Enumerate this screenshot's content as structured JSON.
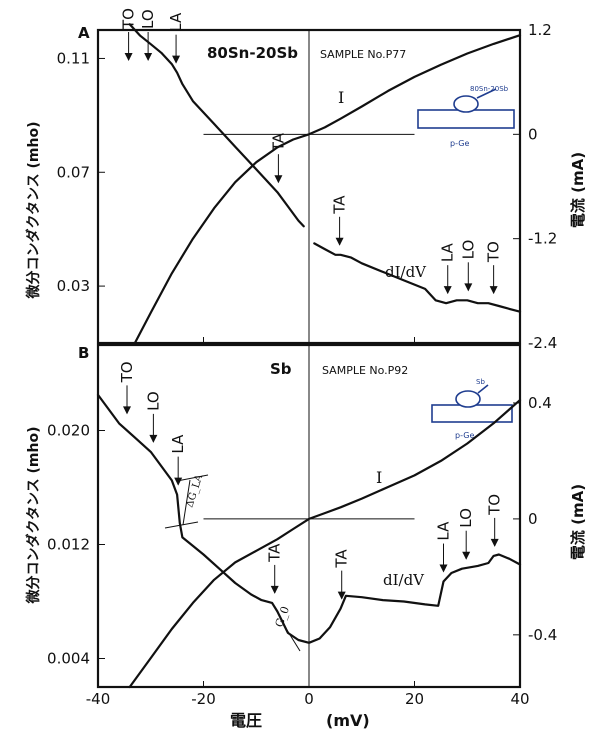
{
  "axes": {
    "xlabel": "電圧",
    "xunit": "(mV)",
    "ylabel_left": "微分コンダクタンス (mho)",
    "ylabel_right": "電流  (mA)"
  },
  "chart_data": [
    {
      "type": "line",
      "panel_label": "A",
      "material": "80Sn-20Sb",
      "sample": "SAMPLE  No.P77",
      "inset_labels": [
        "80Sn-20Sb",
        "p-Ge"
      ],
      "curve_labels": [
        "I",
        "dI/dV"
      ],
      "xlim": [
        -40,
        40
      ],
      "x_ticks": [
        -40,
        -20,
        0,
        20,
        40
      ],
      "ylim_left": [
        0.01,
        0.12
      ],
      "y_ticks_left": [
        "0.03",
        "0.07",
        "0.11"
      ],
      "ylim_right": [
        -2.4,
        1.2
      ],
      "y_ticks_right": [
        "-2.4",
        "-1.2",
        "0",
        "1.2"
      ],
      "phonon_markers": [
        {
          "label": "TO",
          "x": -34.2
        },
        {
          "label": "LO",
          "x": -30.5
        },
        {
          "label": "LA",
          "x": -25.2
        },
        {
          "label": "TA",
          "x": -5.8
        },
        {
          "label": "TA",
          "x": 5.8
        },
        {
          "label": "LA",
          "x": 26.3
        },
        {
          "label": "LO",
          "x": 30.2
        },
        {
          "label": "TO",
          "x": 35.0
        }
      ],
      "series": [
        {
          "name": "dI/dV",
          "axis": "left",
          "x": [
            -34,
            -32,
            -30,
            -28,
            -26,
            -25,
            -24,
            -22,
            -20,
            -18,
            -16,
            -14,
            -12,
            -10,
            -8,
            -6,
            -4,
            -2,
            -1
          ],
          "y": [
            0.122,
            0.118,
            0.115,
            0.112,
            0.108,
            0.105,
            0.101,
            0.095,
            0.091,
            0.087,
            0.083,
            0.079,
            0.075,
            0.071,
            0.067,
            0.063,
            0.058,
            0.053,
            0.051
          ],
          "x2": [
            1,
            3,
            5,
            6,
            8,
            10,
            14,
            18,
            22,
            24,
            26,
            28,
            30,
            32,
            34,
            36,
            38,
            40
          ],
          "y2": [
            0.045,
            0.043,
            0.041,
            0.041,
            0.04,
            0.038,
            0.035,
            0.032,
            0.029,
            0.025,
            0.024,
            0.025,
            0.025,
            0.024,
            0.024,
            0.023,
            0.022,
            0.021
          ]
        },
        {
          "name": "I",
          "axis": "right",
          "x": [
            -33,
            -30,
            -26,
            -22,
            -18,
            -14,
            -10,
            -6,
            -3,
            0,
            3,
            6,
            10,
            15,
            20,
            25,
            30,
            35,
            40
          ],
          "y": [
            -2.4,
            -2.05,
            -1.6,
            -1.2,
            -0.85,
            -0.55,
            -0.32,
            -0.15,
            -0.06,
            0,
            0.08,
            0.18,
            0.32,
            0.5,
            0.66,
            0.8,
            0.93,
            1.04,
            1.14
          ]
        }
      ]
    },
    {
      "type": "line",
      "panel_label": "B",
      "material": "Sb",
      "sample": "SAMPLE  No.P92",
      "inset_labels": [
        "Sb",
        "p-Ge"
      ],
      "curve_labels": [
        "I",
        "dI/dV"
      ],
      "annotations": [
        "ΔG_LA",
        "G_0"
      ],
      "xlim": [
        -40,
        40
      ],
      "x_ticks": [
        -40,
        -20,
        0,
        20,
        40
      ],
      "ylim_left": [
        0.002,
        0.026
      ],
      "y_ticks_left": [
        "0.004",
        "0.012",
        "0.020"
      ],
      "ylim_right": [
        -0.58,
        0.6
      ],
      "y_ticks_right": [
        "-0.4",
        "0",
        "0.4"
      ],
      "phonon_markers": [
        {
          "label": "TO",
          "x": -34.5
        },
        {
          "label": "LO",
          "x": -29.5
        },
        {
          "label": "LA",
          "x": -24.8
        },
        {
          "label": "TA",
          "x": -6.5
        },
        {
          "label": "TA",
          "x": 6.2
        },
        {
          "label": "LA",
          "x": 25.5
        },
        {
          "label": "LO",
          "x": 29.8
        },
        {
          "label": "TO",
          "x": 35.2
        }
      ],
      "series": [
        {
          "name": "dI/dV",
          "axis": "left",
          "x": [
            -40,
            -36,
            -33,
            -30,
            -28,
            -26,
            -25,
            -24.5,
            -24,
            -22,
            -20,
            -17,
            -14,
            -11,
            -9,
            -7,
            -6,
            -4,
            -2,
            0,
            2,
            4,
            6,
            7,
            10,
            14,
            18,
            22,
            24.5,
            25.5,
            27,
            29,
            32,
            34,
            35,
            36,
            38,
            40
          ],
          "y": [
            0.0225,
            0.0205,
            0.0195,
            0.0185,
            0.0175,
            0.0165,
            0.0155,
            0.0135,
            0.0125,
            0.0119,
            0.0113,
            0.0103,
            0.0093,
            0.0085,
            0.0081,
            0.0079,
            0.0073,
            0.0058,
            0.0053,
            0.0051,
            0.0054,
            0.0062,
            0.0075,
            0.0084,
            0.0083,
            0.0081,
            0.008,
            0.0078,
            0.0077,
            0.0094,
            0.01,
            0.0103,
            0.0105,
            0.0107,
            0.0112,
            0.0113,
            0.011,
            0.0106
          ]
        },
        {
          "name": "I",
          "axis": "right",
          "x": [
            -34,
            -30,
            -26,
            -22,
            -18,
            -14,
            -10,
            -6,
            -3,
            0,
            3,
            6,
            10,
            15,
            20,
            25,
            30,
            35,
            40
          ],
          "y": [
            -0.58,
            -0.48,
            -0.38,
            -0.29,
            -0.21,
            -0.15,
            -0.11,
            -0.07,
            -0.035,
            0,
            0.02,
            0.04,
            0.07,
            0.11,
            0.15,
            0.2,
            0.26,
            0.33,
            0.41
          ]
        }
      ]
    }
  ]
}
